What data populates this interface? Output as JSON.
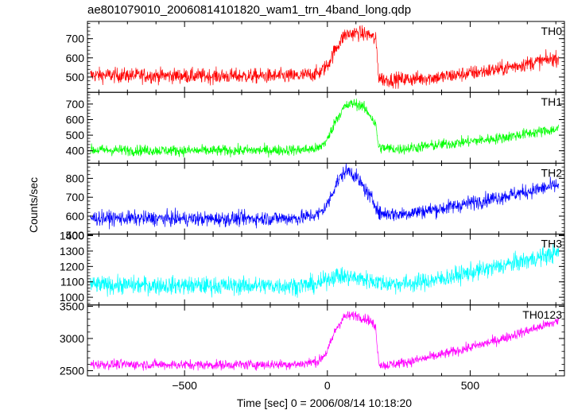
{
  "chart_data": {
    "type": "line",
    "title": "ae801079010_20060814101820_wam1_trn_4band_long.qdp",
    "xlabel": "Time [sec] 0 = 2006/08/14 10:18:20",
    "ylabel": "Counts/sec",
    "xlim": [
      -840,
      830
    ],
    "xticks": [
      -500,
      0,
      500
    ],
    "xtick_labels": [
      "−500",
      "0",
      "500"
    ],
    "grid": false,
    "legend": "none",
    "series": [
      {
        "name": "TH0",
        "color": "#ff0000",
        "ylim": [
          420,
          790
        ],
        "yticks": [
          500,
          600,
          700
        ],
        "noise": 28,
        "points": [
          [
            -830,
            510
          ],
          [
            -400,
            505
          ],
          [
            -100,
            505
          ],
          [
            -30,
            520
          ],
          [
            0,
            560
          ],
          [
            30,
            650
          ],
          [
            60,
            720
          ],
          [
            100,
            730
          ],
          [
            150,
            720
          ],
          [
            170,
            690
          ],
          [
            180,
            500
          ],
          [
            200,
            485
          ],
          [
            300,
            490
          ],
          [
            400,
            500
          ],
          [
            500,
            520
          ],
          [
            600,
            540
          ],
          [
            700,
            570
          ],
          [
            810,
            600
          ]
        ]
      },
      {
        "name": "TH1",
        "color": "#00ff00",
        "ylim": [
          320,
          775
        ],
        "yticks": [
          400,
          500,
          600,
          700
        ],
        "noise": 25,
        "points": [
          [
            -830,
            405
          ],
          [
            -400,
            400
          ],
          [
            -100,
            405
          ],
          [
            -30,
            415
          ],
          [
            0,
            470
          ],
          [
            30,
            600
          ],
          [
            60,
            680
          ],
          [
            90,
            705
          ],
          [
            120,
            690
          ],
          [
            150,
            630
          ],
          [
            170,
            560
          ],
          [
            180,
            420
          ],
          [
            250,
            410
          ],
          [
            400,
            440
          ],
          [
            500,
            460
          ],
          [
            600,
            480
          ],
          [
            700,
            510
          ],
          [
            810,
            540
          ]
        ]
      },
      {
        "name": "TH2",
        "color": "#0000ff",
        "ylim": [
          505,
          880
        ],
        "yticks": [
          500,
          600,
          700,
          800
        ],
        "noise": 28,
        "points": [
          [
            -830,
            590
          ],
          [
            -400,
            585
          ],
          [
            -100,
            590
          ],
          [
            -30,
            610
          ],
          [
            0,
            660
          ],
          [
            30,
            770
          ],
          [
            60,
            835
          ],
          [
            80,
            840
          ],
          [
            110,
            790
          ],
          [
            150,
            700
          ],
          [
            170,
            660
          ],
          [
            180,
            615
          ],
          [
            250,
            610
          ],
          [
            400,
            640
          ],
          [
            500,
            670
          ],
          [
            600,
            700
          ],
          [
            700,
            730
          ],
          [
            810,
            765
          ]
        ]
      },
      {
        "name": "TH3",
        "color": "#00ffff",
        "ylim": [
          950,
          1410
        ],
        "yticks": [
          1000,
          1100,
          1200,
          1300,
          1400
        ],
        "noise": 42,
        "points": [
          [
            -830,
            1080
          ],
          [
            -400,
            1075
          ],
          [
            -100,
            1075
          ],
          [
            -30,
            1085
          ],
          [
            0,
            1120
          ],
          [
            30,
            1140
          ],
          [
            80,
            1130
          ],
          [
            150,
            1110
          ],
          [
            200,
            1090
          ],
          [
            300,
            1090
          ],
          [
            400,
            1120
          ],
          [
            500,
            1160
          ],
          [
            600,
            1200
          ],
          [
            700,
            1240
          ],
          [
            810,
            1290
          ]
        ]
      },
      {
        "name": "TH0123",
        "color": "#ff00ff",
        "ylim": [
          2420,
          3520
        ],
        "yticks": [
          2500,
          3000,
          3500
        ],
        "noise": 55,
        "points": [
          [
            -830,
            2600
          ],
          [
            -400,
            2590
          ],
          [
            -100,
            2600
          ],
          [
            -30,
            2650
          ],
          [
            0,
            2800
          ],
          [
            30,
            3150
          ],
          [
            60,
            3340
          ],
          [
            100,
            3360
          ],
          [
            150,
            3280
          ],
          [
            170,
            3150
          ],
          [
            180,
            2620
          ],
          [
            200,
            2580
          ],
          [
            300,
            2650
          ],
          [
            400,
            2750
          ],
          [
            500,
            2860
          ],
          [
            600,
            2980
          ],
          [
            700,
            3120
          ],
          [
            810,
            3270
          ]
        ]
      }
    ]
  }
}
